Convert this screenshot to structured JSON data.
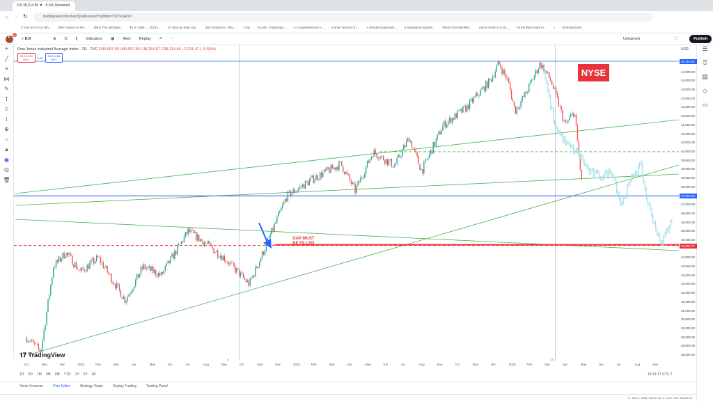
{
  "browser": {
    "tab_title": "DJI 38,314.86 ▼ −5.5% Unnamed",
    "url": "tradingview.com/chart/QodiKpuwo/?symbol=TVC%3ADJI",
    "bookmarks": [
      "If God Is For Us Wh...",
      "(99+) Notes on the...",
      "(99+) The pythagor...",
      "$1 in 1955 → 2023 |...",
      "10 Step by Step Gui...",
      "360 Protractor - Win...",
      "7-Zip",
      "76,345 - Exploring t...",
      "A Comprehensive A...",
      "A Short History of t...",
      "A Simple Explanatio...",
      "A Spacetime Surpris...",
      "About CSS Identifie...",
      "Add a Timer to a GL...",
      "All the Red Giant to...",
      "»",
      "All Bookmarks"
    ]
  },
  "toolbar": {
    "avatar_badge": "11",
    "symbol": "DJI",
    "interval": "D",
    "indicators": "Indicators",
    "alert": "Alert",
    "replay": "Replay",
    "layout_name": "Unnamed",
    "publish": "Publish"
  },
  "legend": {
    "title": "Dow Jones Industrial Average Index · 1D · TVC",
    "open": "O40,097.90",
    "high": "H40,097.90",
    "low": "L38,264.87",
    "close": "C38,314.86",
    "change": "−2,231.07 (−5.50%)",
    "sell_price": "38,314.86",
    "sell_label": "SELL",
    "spread": "0.00",
    "buy_price": "38,314.86",
    "buy_label": "BUY"
  },
  "annotations": {
    "nyse": "NYSE",
    "gap_line1": "GAP MUST",
    "gap_line2": "BE FILLED",
    "logo": "TradingView",
    "vline_a": "8",
    "vline_b": "13"
  },
  "price_axis": {
    "currency": "USD",
    "labels": [
      "44,500.00",
      "44,000.00",
      "43,500.00",
      "43,000.00",
      "42,500.00",
      "42,000.00",
      "41,500.00",
      "41,000.00",
      "40,500.00",
      "40,000.00",
      "39,500.00",
      "39,000.00",
      "38,500.00",
      "38,000.00",
      "37,000.00",
      "36,500.00",
      "36,000.00",
      "35,500.00",
      "35,000.00",
      "34,000.00",
      "33,500.00",
      "33,000.00",
      "32,500.00",
      "32,000.00",
      "31,500.00",
      "31,000.00",
      "30,500.00",
      "30,000.00",
      "29,500.00",
      "29,000.00",
      "28,500.00"
    ],
    "tags": [
      {
        "text": "45,116.03",
        "value": 45116.03,
        "color": "#2962ff"
      },
      {
        "text": "37,500.00",
        "value": 37500,
        "color": "#2962ff"
      },
      {
        "text": "34,694.77",
        "value": 34694.77,
        "color": "#e8323c"
      }
    ]
  },
  "time_axis": [
    "Oct",
    "Nov",
    "Dec",
    "2023",
    "Feb",
    "Mar",
    "Apr",
    "May",
    "Jun",
    "Jul",
    "Aug",
    "Sep",
    "Oct",
    "Nov",
    "Dec",
    "2024",
    "Feb",
    "Mar",
    "Apr",
    "May",
    "Jun",
    "Jul",
    "Aug",
    "Sep",
    "Oct",
    "Nov",
    "Dec",
    "2025",
    "Feb",
    "Mar",
    "Apr",
    "May",
    "Jun",
    "Jul",
    "Aug",
    "Sep"
  ],
  "ranges": [
    "1D",
    "5D",
    "1M",
    "3M",
    "6M",
    "YTD",
    "1Y",
    "5Y",
    "All"
  ],
  "clock": "16:31:17 UTC-7",
  "bottom_tabs": [
    "Stock Screener",
    "Pine Editor",
    "Strategy Tester",
    "Replay Trading",
    "Trading Panel"
  ],
  "status": "6 - Dec 9, 2024, 13:24   Line 1, Col 1   Pine Script® v6",
  "chart_data": {
    "type": "candlestick",
    "symbol": "DJI",
    "ylim": [
      28200,
      45500
    ],
    "close_path": [
      [
        0,
        29500
      ],
      [
        0.8,
        28700
      ],
      [
        1.5,
        33500
      ],
      [
        2.2,
        34300
      ],
      [
        3,
        33200
      ],
      [
        4,
        34000
      ],
      [
        5.5,
        31600
      ],
      [
        6.5,
        33500
      ],
      [
        7.5,
        33000
      ],
      [
        9,
        35500
      ],
      [
        10,
        34800
      ],
      [
        11,
        34000
      ],
      [
        12.4,
        32500
      ],
      [
        13.3,
        34600
      ],
      [
        14.5,
        37500
      ],
      [
        16,
        38500
      ],
      [
        17.5,
        39300
      ],
      [
        18.3,
        37800
      ],
      [
        19.3,
        40000
      ],
      [
        20.5,
        39200
      ],
      [
        21.3,
        40800
      ],
      [
        22,
        38900
      ],
      [
        23.2,
        41500
      ],
      [
        24.5,
        42500
      ],
      [
        25.8,
        44000
      ],
      [
        26.3,
        45000
      ],
      [
        26.8,
        44000
      ],
      [
        27.2,
        42300
      ],
      [
        27.8,
        43300
      ],
      [
        28.6,
        45000
      ],
      [
        29.2,
        44000
      ],
      [
        30,
        41500
      ],
      [
        30.5,
        42300
      ],
      [
        30.9,
        38314
      ]
    ],
    "projection_path": [
      [
        28.8,
        44500
      ],
      [
        29.4,
        41500
      ],
      [
        30,
        40500
      ],
      [
        30.8,
        39800
      ],
      [
        31.3,
        38900
      ],
      [
        32,
        38600
      ],
      [
        32.6,
        38900
      ],
      [
        33.1,
        37000
      ],
      [
        33.8,
        38800
      ],
      [
        34.2,
        39200
      ],
      [
        34.5,
        37400
      ],
      [
        35,
        35800
      ],
      [
        35.3,
        34700
      ],
      [
        35.7,
        35700
      ],
      [
        36,
        36200
      ]
    ],
    "horizontal_levels": [
      45116.03,
      37500,
      34694.77,
      40000
    ]
  }
}
